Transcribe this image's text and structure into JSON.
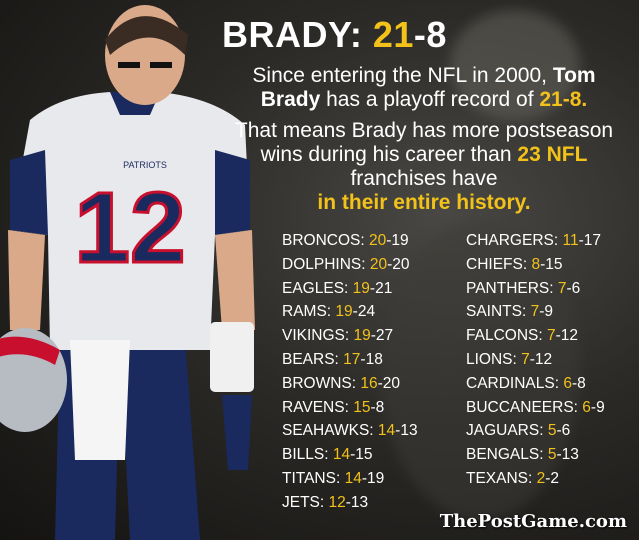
{
  "headline": {
    "prefix": "BRADY: ",
    "wins": "21",
    "sep": "-",
    "losses": "8"
  },
  "intro": {
    "line1": "Since entering the NFL in 2000,",
    "name": "Tom Brady",
    "line2": "has a playoff record of",
    "record": "21-8."
  },
  "claim": {
    "part1": "That means Brady has more postseason wins during his career than",
    "highlight": "23 NFL",
    "part2": "franchises have",
    "emphasis": "in their entire history."
  },
  "teams_left": [
    {
      "name": "BRONCOS: ",
      "w": "20",
      "l": "-19"
    },
    {
      "name": "DOLPHINS: ",
      "w": "20",
      "l": "-20"
    },
    {
      "name": "EAGLES: ",
      "w": "19",
      "l": "-21"
    },
    {
      "name": "RAMS: ",
      "w": "19",
      "l": "-24"
    },
    {
      "name": "VIKINGS: ",
      "w": "19",
      "l": "-27"
    },
    {
      "name": "BEARS: ",
      "w": "17",
      "l": "-18"
    },
    {
      "name": "BROWNS: ",
      "w": "16",
      "l": "-20"
    },
    {
      "name": "RAVENS: ",
      "w": "15",
      "l": "-8"
    },
    {
      "name": "SEAHAWKS: ",
      "w": "14",
      "l": "-13"
    },
    {
      "name": "BILLS: ",
      "w": "14",
      "l": "-15"
    },
    {
      "name": "TITANS: ",
      "w": "14",
      "l": "-19"
    },
    {
      "name": "JETS: ",
      "w": "12",
      "l": "-13"
    }
  ],
  "teams_right": [
    {
      "name": "CHARGERS: ",
      "w": "11",
      "l": "-17"
    },
    {
      "name": "CHIEFS: ",
      "w": "8",
      "l": "-15"
    },
    {
      "name": "PANTHERS: ",
      "w": "7",
      "l": "-6"
    },
    {
      "name": "SAINTS: ",
      "w": "7",
      "l": "-9"
    },
    {
      "name": "FALCONS: ",
      "w": "7",
      "l": "-12"
    },
    {
      "name": "LIONS: ",
      "w": "7",
      "l": "-12"
    },
    {
      "name": "CARDINALS: ",
      "w": "6",
      "l": "-8"
    },
    {
      "name": "BUCCANEERS: ",
      "w": "6",
      "l": "-9"
    },
    {
      "name": "JAGUARS: ",
      "w": "5",
      "l": "-6"
    },
    {
      "name": "BENGALS: ",
      "w": "5",
      "l": "-13"
    },
    {
      "name": "TEXANS: ",
      "w": "2",
      "l": "-2"
    }
  ],
  "jersey_number": "12",
  "jersey_team": "PATRIOTS",
  "source": "ThePostGame.com",
  "colors": {
    "accent": "#f2c21b",
    "navy": "#1b2a5e",
    "red": "#c8102e"
  }
}
